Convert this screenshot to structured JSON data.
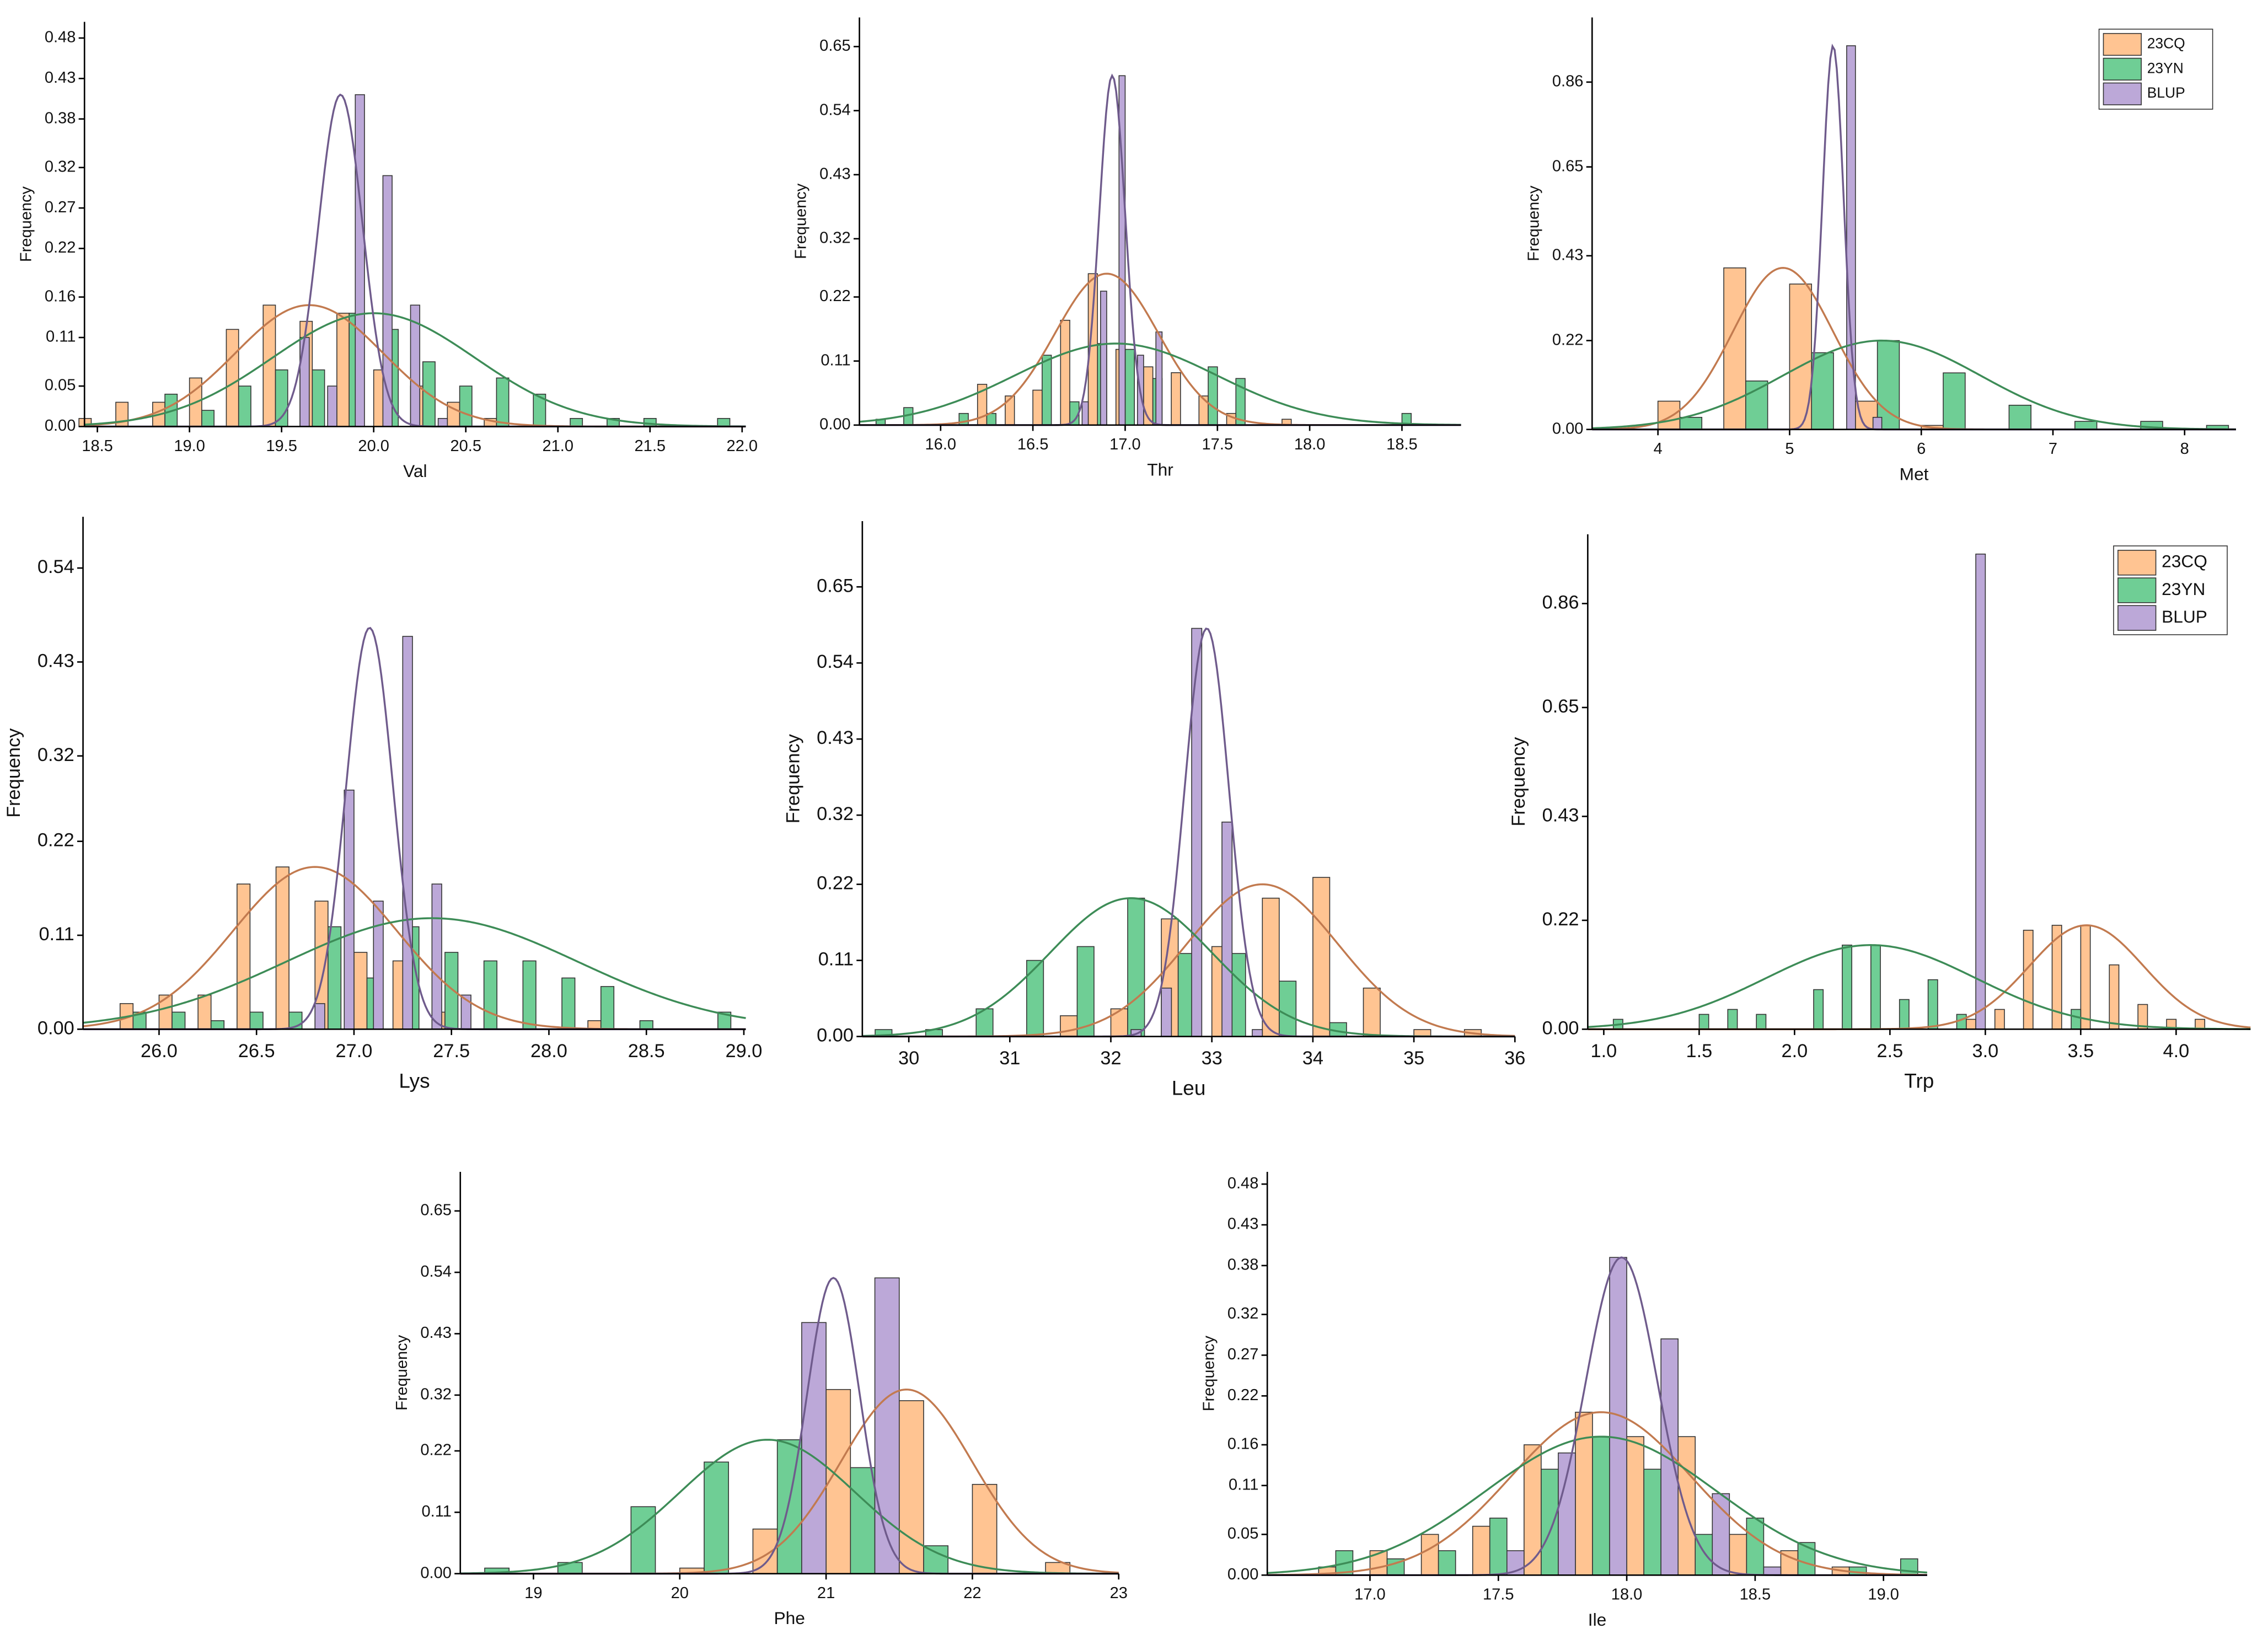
{
  "chart_data": [
    {
      "type": "histogram",
      "xlabel": "Val",
      "ylabel": "Frequency",
      "xlim": [
        18.43,
        22.02
      ],
      "ylim": [
        0,
        0.5
      ],
      "xticks": [
        18.5,
        {
          "value": 19,
          "label": "19.0"
        },
        19.5,
        {
          "value": 20,
          "label": "20.0"
        },
        20.5,
        {
          "value": 21,
          "label": "21.0"
        },
        21.5,
        {
          "value": 22,
          "label": "22.0"
        }
      ],
      "yticks": [
        {
          "value": 0,
          "label": "0.00"
        },
        0.05,
        0.11,
        0.16,
        0.22,
        0.27,
        0.32,
        0.38,
        0.43,
        0.48
      ],
      "series": [
        {
          "color": "#ffc492",
          "bins": [
            18.4,
            18.6,
            18.8,
            19.0,
            19.2,
            19.4,
            19.6,
            19.8,
            20.0,
            20.2,
            20.4,
            20.6,
            20.8
          ],
          "values": [
            0.01,
            0.03,
            0.03,
            0.06,
            0.12,
            0.15,
            0.13,
            0.14,
            0.07,
            0.05,
            0.03,
            0.01
          ],
          "fit": {
            "mean": 19.65,
            "sd": 0.4,
            "peak": 0.15
          }
        },
        {
          "color": "#6fce95",
          "bins": [
            18.8,
            19.0,
            19.2,
            19.4,
            19.6,
            19.8,
            20.0,
            20.2,
            20.4,
            20.6,
            20.8,
            21.0,
            21.2,
            21.4,
            21.6,
            21.8,
            22.0
          ],
          "values": [
            0.04,
            0.02,
            0.05,
            0.07,
            0.07,
            0.14,
            0.12,
            0.08,
            0.05,
            0.06,
            0.04,
            0.01,
            0.01,
            0.01,
            0,
            0.01
          ],
          "fit": {
            "mean": 20.0,
            "sd": 0.55,
            "peak": 0.14
          }
        },
        {
          "color": "#bca8d8",
          "bins": [
            19.5,
            19.65,
            19.8,
            19.95,
            20.1,
            20.25,
            20.4
          ],
          "values": [
            0.11,
            0.05,
            0.41,
            0.31,
            0.15,
            0.01
          ],
          "fit": {
            "mean": 19.82,
            "sd": 0.12,
            "peak": 0.41
          }
        }
      ]
    },
    {
      "type": "histogram",
      "xlabel": "Thr",
      "ylabel": "Frequency",
      "xlim": [
        15.56,
        18.82
      ],
      "ylim": [
        0,
        0.7
      ],
      "xticks": [
        {
          "value": 16,
          "label": "16.0"
        },
        16.5,
        {
          "value": 17,
          "label": "17.0"
        },
        17.5,
        {
          "value": 18,
          "label": "18.0"
        },
        18.5
      ],
      "yticks": [
        {
          "value": 0,
          "label": "0.00"
        },
        0.11,
        0.22,
        0.32,
        0.43,
        0.54,
        0.65
      ],
      "series": [
        {
          "color": "#ffc492",
          "bins": [
            16.2,
            16.35,
            16.5,
            16.65,
            16.8,
            16.95,
            17.1,
            17.25,
            17.4,
            17.55,
            17.7,
            17.85,
            18.0
          ],
          "values": [
            0.07,
            0.05,
            0.06,
            0.18,
            0.26,
            0.13,
            0.1,
            0.09,
            0.05,
            0.02,
            0,
            0.01
          ],
          "fit": {
            "mean": 16.9,
            "sd": 0.28,
            "peak": 0.26
          }
        },
        {
          "color": "#6fce95",
          "bins": [
            15.6,
            15.75,
            15.9,
            16.05,
            16.2,
            16.35,
            16.5,
            16.65,
            16.8,
            16.95,
            17.1,
            17.25,
            17.4,
            17.55,
            17.7,
            17.85,
            18.0,
            18.15,
            18.3,
            18.45,
            18.6
          ],
          "values": [
            0.01,
            0.03,
            0,
            0.02,
            0.02,
            0,
            0.12,
            0.04,
            0.14,
            0.13,
            0.08,
            0,
            0.1,
            0.08,
            0,
            0,
            0,
            0,
            0,
            0.02
          ],
          "fit": {
            "mean": 16.95,
            "sd": 0.55,
            "peak": 0.14
          }
        },
        {
          "color": "#bca8d8",
          "bins": [
            16.7,
            16.8,
            16.9,
            17.0,
            17.1,
            17.2
          ],
          "values": [
            0.04,
            0.23,
            0.6,
            0.12,
            0.16
          ],
          "fit": {
            "mean": 16.93,
            "sd": 0.07,
            "peak": 0.6
          }
        }
      ]
    },
    {
      "type": "histogram",
      "xlabel": "Met",
      "ylabel": "Frequency",
      "legend": "upper right",
      "xlim": [
        3.5,
        8.39
      ],
      "ylim": [
        0,
        1.02
      ],
      "xticks": [
        4,
        5,
        6,
        7,
        8
      ],
      "yticks": [
        {
          "value": 0,
          "label": "0.00"
        },
        0.22,
        0.43,
        0.65,
        0.86
      ],
      "series": [
        {
          "name": "23CQ",
          "color": "#ffc492",
          "bins": [
            4.0,
            4.5,
            5.0,
            5.5,
            6.0,
            6.5
          ],
          "values": [
            0.07,
            0.4,
            0.36,
            0.07,
            0.01
          ],
          "fit": {
            "mean": 4.95,
            "sd": 0.38,
            "peak": 0.4
          }
        },
        {
          "name": "23YN",
          "color": "#6fce95",
          "bins": [
            4.0,
            4.5,
            5.0,
            5.5,
            6.0,
            6.5,
            7.0,
            7.5,
            8.0,
            8.5
          ],
          "values": [
            0.03,
            0.12,
            0.19,
            0.22,
            0.14,
            0.06,
            0.02,
            0.02,
            0.01
          ],
          "fit": {
            "mean": 5.7,
            "sd": 0.75,
            "peak": 0.22
          }
        },
        {
          "name": "BLUP",
          "color": "#bca8d8",
          "bins": [
            5.3,
            5.5,
            5.7
          ],
          "values": [
            0.95,
            0.03
          ],
          "fit": {
            "mean": 5.33,
            "sd": 0.08,
            "peak": 0.95
          }
        }
      ]
    },
    {
      "type": "histogram",
      "xlabel": "Lys",
      "ylabel": "Frequency",
      "xlim": [
        25.61,
        29.01
      ],
      "ylim": [
        0,
        0.6
      ],
      "xticks": [
        {
          "value": 26,
          "label": "26.0"
        },
        26.5,
        {
          "value": 27,
          "label": "27.0"
        },
        27.5,
        {
          "value": 28,
          "label": "28.0"
        },
        28.5,
        {
          "value": 29,
          "label": "29.0"
        }
      ],
      "yticks": [
        {
          "value": 0,
          "label": "0.00"
        },
        0.11,
        0.22,
        0.32,
        0.43,
        0.54
      ],
      "series": [
        {
          "color": "#ffc492",
          "bins": [
            25.6,
            25.8,
            26.0,
            26.2,
            26.4,
            26.6,
            26.8,
            27.0,
            27.2,
            27.4,
            27.6,
            27.8,
            28.0,
            28.2,
            28.4
          ],
          "values": [
            0,
            0.03,
            0.04,
            0.04,
            0.17,
            0.19,
            0.15,
            0.09,
            0.08,
            0.02,
            0,
            0,
            0,
            0.01
          ],
          "fit": {
            "mean": 26.8,
            "sd": 0.42,
            "peak": 0.19
          }
        },
        {
          "color": "#6fce95",
          "bins": [
            25.8,
            26.0,
            26.2,
            26.4,
            26.6,
            26.8,
            27.0,
            27.2,
            27.4,
            27.6,
            27.8,
            28.0,
            28.2,
            28.4,
            28.6,
            28.8,
            29.0
          ],
          "values": [
            0.02,
            0.02,
            0.01,
            0.02,
            0.02,
            0.12,
            0.06,
            0.12,
            0.09,
            0.08,
            0.08,
            0.06,
            0.05,
            0.01,
            0,
            0.02
          ],
          "fit": {
            "mean": 27.4,
            "sd": 0.75,
            "peak": 0.13
          }
        },
        {
          "color": "#bca8d8",
          "bins": [
            26.7,
            26.85,
            27.0,
            27.15,
            27.3,
            27.45,
            27.6
          ],
          "values": [
            0.03,
            0.28,
            0.15,
            0.46,
            0.17,
            0.04
          ],
          "fit": {
            "mean": 27.08,
            "sd": 0.12,
            "peak": 0.47
          }
        }
      ]
    },
    {
      "type": "histogram",
      "xlabel": "Leu",
      "ylabel": "Frequency",
      "xlim": [
        29.54,
        36
      ],
      "ylim": [
        0,
        0.745
      ],
      "xticks": [
        30,
        31,
        32,
        33,
        34,
        35,
        36
      ],
      "yticks": [
        {
          "value": 0,
          "label": "0.00"
        },
        0.11,
        0.22,
        0.32,
        0.43,
        0.54,
        0.65
      ],
      "series": [
        {
          "color": "#ffc492",
          "bins": [
            31.5,
            32.0,
            32.5,
            33.0,
            33.5,
            34.0,
            34.5,
            35.0,
            35.5,
            36.0
          ],
          "values": [
            0.03,
            0.04,
            0.17,
            0.13,
            0.2,
            0.23,
            0.07,
            0.01,
            0.01
          ],
          "fit": {
            "mean": 33.5,
            "sd": 0.75,
            "peak": 0.22
          }
        },
        {
          "color": "#6fce95",
          "bins": [
            29.5,
            30.0,
            30.5,
            31.0,
            31.5,
            32.0,
            32.5,
            33.0,
            33.5,
            34.0,
            34.5
          ],
          "values": [
            0.01,
            0.01,
            0.04,
            0.11,
            0.13,
            0.2,
            0.12,
            0.12,
            0.08,
            0.02
          ],
          "fit": {
            "mean": 32.2,
            "sd": 0.8,
            "peak": 0.2
          }
        },
        {
          "color": "#bca8d8",
          "bins": [
            32.0,
            32.3,
            32.6,
            32.9,
            33.2,
            33.5,
            33.8
          ],
          "values": [
            0.01,
            0.07,
            0.59,
            0.31,
            0.01,
            0
          ],
          "fit": {
            "mean": 32.95,
            "sd": 0.22,
            "peak": 0.59
          }
        }
      ]
    },
    {
      "type": "histogram",
      "xlabel": "Trp",
      "ylabel": "Frequency",
      "legend": "upper right",
      "xlim": [
        0.916,
        4.39
      ],
      "ylim": [
        0,
        1.0
      ],
      "xticks": [
        {
          "value": 1,
          "label": "1.0"
        },
        1.5,
        {
          "value": 2,
          "label": "2.0"
        },
        2.5,
        {
          "value": 3,
          "label": "3.0"
        },
        3.5,
        {
          "value": 4,
          "label": "4.0"
        }
      ],
      "yticks": [
        {
          "value": 0,
          "label": "0.00"
        },
        0.22,
        0.43,
        0.65,
        0.86
      ],
      "series": [
        {
          "name": "23CQ",
          "color": "#ffc492",
          "bins": [
            2.9,
            3.05,
            3.2,
            3.35,
            3.5,
            3.65,
            3.8,
            3.95,
            4.1,
            4.25,
            4.4
          ],
          "values": [
            0.02,
            0.04,
            0.2,
            0.21,
            0.21,
            0.13,
            0.05,
            0.02,
            0.02,
            0
          ],
          "fit": {
            "mean": 3.53,
            "sd": 0.3,
            "peak": 0.21
          }
        },
        {
          "name": "23YN",
          "color": "#6fce95",
          "bins": [
            1.0,
            1.15,
            1.3,
            1.45,
            1.6,
            1.75,
            1.9,
            2.05,
            2.2,
            2.35,
            2.5,
            2.65,
            2.8,
            2.95,
            3.1,
            3.25,
            3.4,
            3.55,
            3.7
          ],
          "values": [
            0.02,
            0,
            0,
            0.03,
            0.04,
            0.03,
            0,
            0.08,
            0.17,
            0.17,
            0.06,
            0.1,
            0.03,
            0,
            0,
            0,
            0.04,
            0
          ],
          "fit": {
            "mean": 2.4,
            "sd": 0.55,
            "peak": 0.17
          }
        },
        {
          "name": "BLUP",
          "color": "#bca8d8",
          "bins": [
            2.85,
            3.0
          ],
          "values": [
            0.96
          ]
        }
      ]
    },
    {
      "type": "histogram",
      "xlabel": "Phe",
      "ylabel": "Frequency",
      "xlim": [
        18.5,
        23
      ],
      "ylim": [
        0,
        0.72
      ],
      "xticks": [
        19,
        20,
        21,
        22,
        23
      ],
      "yticks": [
        {
          "value": 0,
          "label": "0.00"
        },
        0.11,
        0.22,
        0.32,
        0.43,
        0.54,
        0.65
      ],
      "series": [
        {
          "color": "#ffc492",
          "bins": [
            20.0,
            20.5,
            21.0,
            21.5,
            22.0,
            22.5,
            23.0
          ],
          "values": [
            0.01,
            0.08,
            0.33,
            0.31,
            0.16,
            0.02
          ],
          "fit": {
            "mean": 21.55,
            "sd": 0.45,
            "peak": 0.33
          }
        },
        {
          "color": "#6fce95",
          "bins": [
            18.5,
            19.0,
            19.5,
            20.0,
            20.5,
            21.0,
            21.5,
            22.0
          ],
          "values": [
            0.01,
            0.02,
            0.12,
            0.2,
            0.24,
            0.19,
            0.05
          ],
          "fit": {
            "mean": 20.6,
            "sd": 0.6,
            "peak": 0.24
          }
        },
        {
          "color": "#bca8d8",
          "bins": [
            20.5,
            21.0,
            21.5
          ],
          "values": [
            0.45,
            0.53
          ],
          "fit": {
            "mean": 21.05,
            "sd": 0.18,
            "peak": 0.53
          }
        }
      ]
    },
    {
      "type": "histogram",
      "xlabel": "Ile",
      "ylabel": "Frequency",
      "xlim": [
        16.6,
        19.17
      ],
      "ylim": [
        0,
        0.495
      ],
      "xticks": [
        {
          "value": 17,
          "label": "17.0"
        },
        17.5,
        {
          "value": 18,
          "label": "18.0"
        },
        18.5,
        {
          "value": 19,
          "label": "19.0"
        }
      ],
      "yticks": [
        {
          "value": 0,
          "label": "0.00"
        },
        0.05,
        0.11,
        0.16,
        0.22,
        0.27,
        0.32,
        0.38,
        0.43,
        0.48
      ],
      "series": [
        {
          "color": "#ffc492",
          "bins": [
            16.8,
            17.0,
            17.2,
            17.4,
            17.6,
            17.8,
            18.0,
            18.2,
            18.4,
            18.6,
            18.8,
            19.0,
            19.2
          ],
          "values": [
            0.01,
            0.03,
            0.05,
            0.06,
            0.16,
            0.2,
            0.17,
            0.17,
            0.05,
            0.03,
            0.01,
            0
          ],
          "fit": {
            "mean": 17.9,
            "sd": 0.35,
            "peak": 0.2
          }
        },
        {
          "color": "#6fce95",
          "bins": [
            16.8,
            17.0,
            17.2,
            17.4,
            17.6,
            17.8,
            18.0,
            18.2,
            18.4,
            18.6,
            18.8,
            19.0,
            19.2
          ],
          "values": [
            0.03,
            0.02,
            0.03,
            0.07,
            0.13,
            0.17,
            0.13,
            0.05,
            0.07,
            0.04,
            0.01,
            0.02
          ],
          "fit": {
            "mean": 17.9,
            "sd": 0.45,
            "peak": 0.17
          }
        },
        {
          "color": "#bca8d8",
          "bins": [
            17.4,
            17.6,
            17.8,
            18.0,
            18.2,
            18.4,
            18.6
          ],
          "values": [
            0.03,
            0.15,
            0.39,
            0.29,
            0.1,
            0.01
          ],
          "fit": {
            "mean": 17.98,
            "sd": 0.14,
            "peak": 0.39
          }
        }
      ]
    }
  ]
}
